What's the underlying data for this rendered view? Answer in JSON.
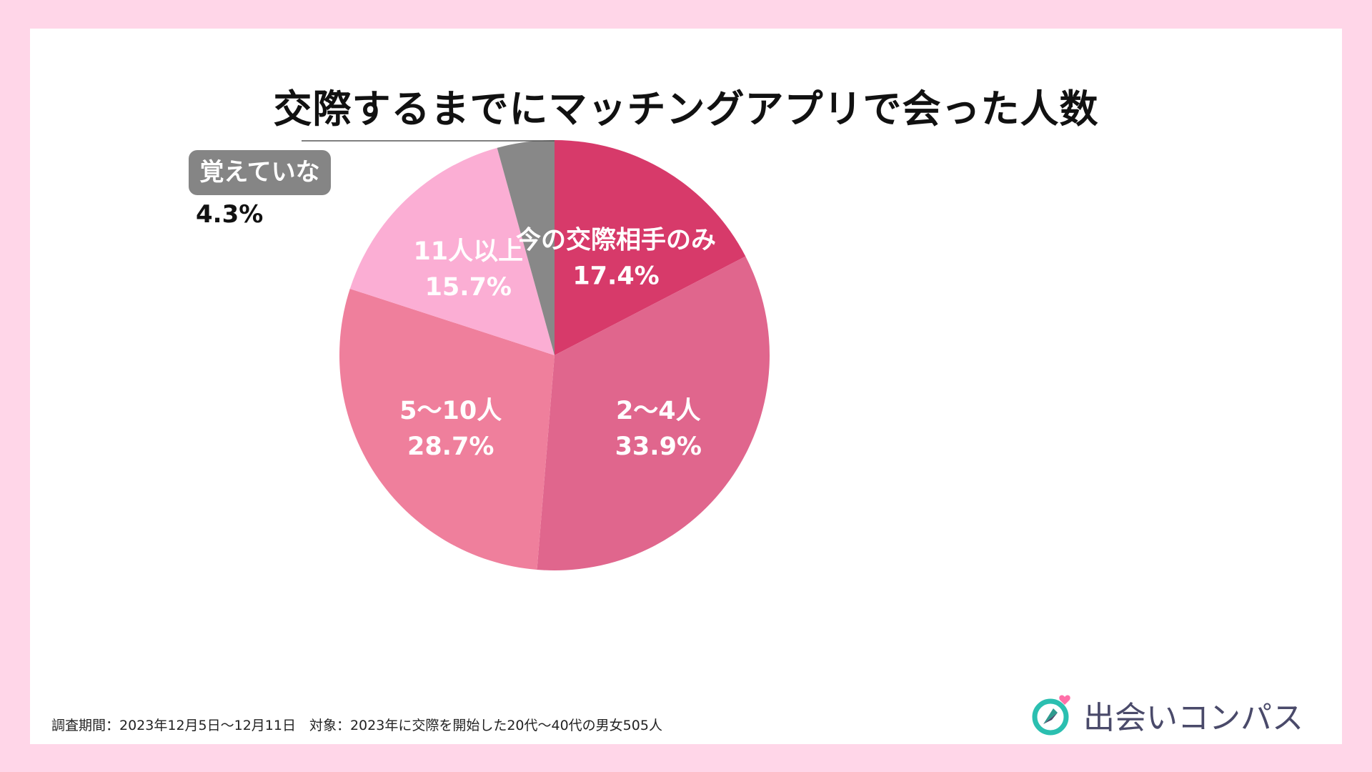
{
  "chart_data": {
    "type": "pie",
    "title": "交際するまでにマッチングアプリで会った人数",
    "unit": "%",
    "start_angle_deg": 0,
    "direction": "clockwise",
    "slices": [
      {
        "label": "今の交際相手のみ",
        "value": 17.4,
        "value_label": "17.4%",
        "color": "#d73a6a"
      },
      {
        "label": "2〜4人",
        "value": 33.9,
        "value_label": "33.9%",
        "color": "#e0668d"
      },
      {
        "label": "5〜10人",
        "value": 28.7,
        "value_label": "28.7%",
        "color": "#ef7f9c"
      },
      {
        "label": "11人以上",
        "value": 15.7,
        "value_label": "15.7%",
        "color": "#fbaed4"
      },
      {
        "label": "覚えていない",
        "value": 4.3,
        "value_label": "4.3%",
        "color": "#888888"
      }
    ]
  },
  "callout": {
    "label": "覚えていない",
    "value": "4.3%"
  },
  "footnote": "調査期間：2023年12月5日〜12月11日　対象：2023年に交際を開始した20代〜40代の男女505人",
  "logo": {
    "text": "出会いコンパス",
    "icon": "compass-heart-icon",
    "ring_color": "#2bbfb0",
    "heart_color": "#ff6fa8"
  }
}
